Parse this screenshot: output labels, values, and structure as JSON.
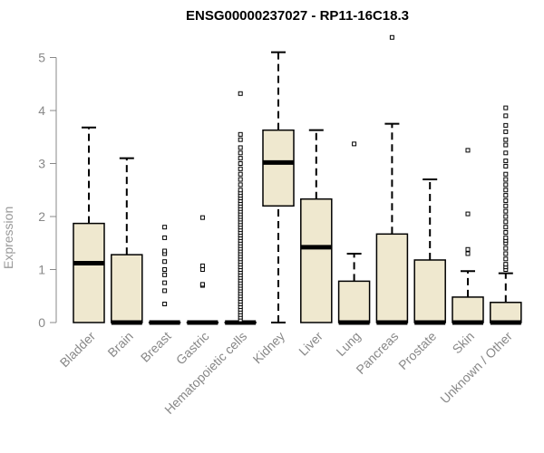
{
  "chart_data": {
    "type": "box",
    "title": "ENSG00000237027 - RP11-16C18.3",
    "xlabel": "",
    "ylabel": "Expression",
    "ylim": [
      0,
      5.5
    ],
    "yticks": [
      0,
      1,
      2,
      3,
      4,
      5
    ],
    "grid": false,
    "legend": "none",
    "colors": {
      "box_fill": "#efe8cf",
      "stroke": "#000000",
      "axis": "#888888",
      "tick_label": "#888888"
    },
    "categories": [
      "Bladder",
      "Brain",
      "Breast",
      "Gastric",
      "Hematopoietic cells",
      "Kidney",
      "Liver",
      "Lung",
      "Pancreas",
      "Prostate",
      "Skin",
      "Unknown / Other"
    ],
    "boxes": [
      {
        "category": "Bladder",
        "min": 0,
        "q1": 0,
        "median": 1.12,
        "q3": 1.87,
        "max": 3.68,
        "outliers": []
      },
      {
        "category": "Brain",
        "min": 0,
        "q1": 0,
        "median": 0,
        "q3": 1.28,
        "max": 3.1,
        "outliers": []
      },
      {
        "category": "Breast",
        "min": 0,
        "q1": 0,
        "median": 0,
        "q3": 0,
        "max": 0,
        "outliers": [
          0.35,
          0.6,
          0.75,
          0.9,
          1.0,
          1.15,
          1.3,
          1.35,
          1.6,
          1.8
        ]
      },
      {
        "category": "Gastric",
        "min": 0,
        "q1": 0,
        "median": 0,
        "q3": 0,
        "max": 0,
        "outliers": [
          0.7,
          0.72,
          1.0,
          1.07,
          1.98
        ]
      },
      {
        "category": "Hematopoietic cells",
        "min": 0,
        "q1": 0,
        "median": 0,
        "q3": 0,
        "max": 0,
        "outliers": [
          0.05,
          0.1,
          0.15,
          0.2,
          0.25,
          0.3,
          0.35,
          0.4,
          0.45,
          0.5,
          0.55,
          0.6,
          0.65,
          0.7,
          0.75,
          0.8,
          0.85,
          0.9,
          0.95,
          1.0,
          1.05,
          1.1,
          1.15,
          1.2,
          1.25,
          1.3,
          1.35,
          1.4,
          1.45,
          1.5,
          1.55,
          1.6,
          1.65,
          1.7,
          1.75,
          1.8,
          1.85,
          1.9,
          1.95,
          2.0,
          2.05,
          2.1,
          2.15,
          2.2,
          2.25,
          2.3,
          2.35,
          2.4,
          2.45,
          2.5,
          2.6,
          2.7,
          2.8,
          2.9,
          3.0,
          3.1,
          3.2,
          3.3,
          3.45,
          3.55,
          4.32
        ]
      },
      {
        "category": "Kidney",
        "min": 0,
        "q1": 2.2,
        "median": 3.02,
        "q3": 3.63,
        "max": 5.1,
        "outliers": []
      },
      {
        "category": "Liver",
        "min": 0,
        "q1": 0,
        "median": 1.42,
        "q3": 2.33,
        "max": 3.63,
        "outliers": []
      },
      {
        "category": "Lung",
        "min": 0,
        "q1": 0,
        "median": 0,
        "q3": 0.78,
        "max": 1.3,
        "outliers": [
          3.37
        ]
      },
      {
        "category": "Pancreas",
        "min": 0,
        "q1": 0,
        "median": 0,
        "q3": 1.67,
        "max": 3.75,
        "outliers": [
          5.38
        ]
      },
      {
        "category": "Prostate",
        "min": 0,
        "q1": 0,
        "median": 0,
        "q3": 1.18,
        "max": 2.7,
        "outliers": []
      },
      {
        "category": "Skin",
        "min": 0,
        "q1": 0,
        "median": 0,
        "q3": 0.48,
        "max": 0.97,
        "outliers": [
          1.3,
          1.38,
          2.05,
          3.25
        ]
      },
      {
        "category": "Unknown / Other",
        "min": 0,
        "q1": 0,
        "median": 0,
        "q3": 0.38,
        "max": 0.93,
        "outliers": [
          1.0,
          1.05,
          1.1,
          1.2,
          1.3,
          1.4,
          1.5,
          1.55,
          1.6,
          1.7,
          1.8,
          1.9,
          2.0,
          2.1,
          2.2,
          2.3,
          2.4,
          2.5,
          2.6,
          2.7,
          2.8,
          2.95,
          3.05,
          3.2,
          3.35,
          3.45,
          3.6,
          3.72,
          3.9,
          4.05
        ]
      }
    ]
  }
}
